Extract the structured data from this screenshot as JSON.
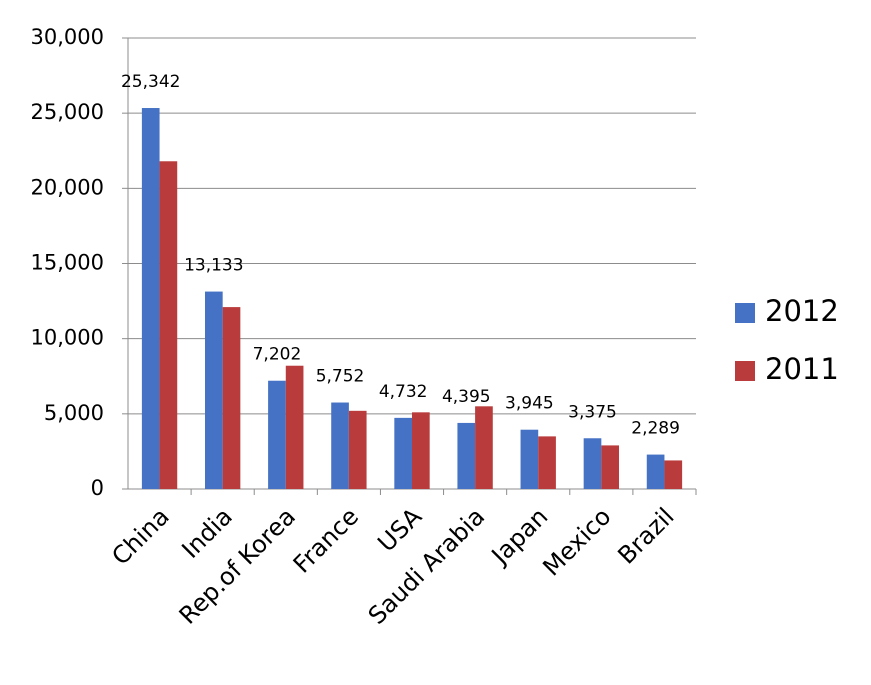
{
  "chart_data": {
    "type": "bar",
    "categories": [
      "China",
      "India",
      "Rep.of Korea",
      "France",
      "USA",
      "Saudi Arabia",
      "Japan",
      "Mexico",
      "Brazil"
    ],
    "series": [
      {
        "name": "2012",
        "color": "#4572c4",
        "values": [
          25342,
          13133,
          7202,
          5752,
          4732,
          4395,
          3945,
          3375,
          2289
        ],
        "value_labels": [
          "25,342",
          "13,133",
          "7,202",
          "5,752",
          "4,732",
          "4,395",
          "3,945",
          "3,375",
          "2,289"
        ]
      },
      {
        "name": "2011",
        "color": "#b93b3b",
        "values": [
          21800,
          12100,
          8200,
          5200,
          5100,
          5500,
          3500,
          2900,
          1900
        ]
      }
    ],
    "ylim": [
      0,
      30000
    ],
    "yticks": [
      0,
      {
        "value": 5000,
        "label": "5,000"
      },
      {
        "value": 10000,
        "label": "10,000"
      },
      {
        "value": 15000,
        "label": "15,000"
      },
      {
        "value": 20000,
        "label": "20,000"
      },
      {
        "value": 25000,
        "label": "25,000"
      },
      {
        "value": 30000,
        "label": "30,000"
      }
    ],
    "grid": true,
    "legend": "right"
  }
}
